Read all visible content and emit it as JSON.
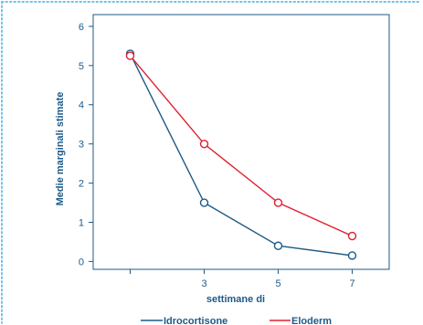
{
  "colors": {
    "frame_dots": "#74c1e8",
    "axis": "#1d5a88",
    "text": "#1d5a88",
    "series_idrocortisone": "#1d5a88",
    "series_eloderm": "#e0202f"
  },
  "chart_data": {
    "type": "line",
    "xlabel": "settimane di",
    "ylabel": "Medie marginali stimate",
    "x": [
      1,
      3,
      5,
      7
    ],
    "x_tick_labels": [
      "",
      "3",
      "5",
      "7"
    ],
    "xlim": [
      0,
      8
    ],
    "ylim": [
      -0.2,
      6.3
    ],
    "y_ticks": [
      0,
      1,
      2,
      3,
      4,
      5,
      6
    ],
    "y_tick_labels": [
      "0",
      "1",
      "2",
      "3",
      "4",
      "5",
      "6"
    ],
    "grid": false,
    "legend_position": "bottom",
    "series": [
      {
        "name": "Idrocortisone",
        "values": [
          5.3,
          1.5,
          0.4,
          0.15
        ]
      },
      {
        "name": "Eloderm",
        "values": [
          5.25,
          3.0,
          1.5,
          0.65
        ]
      }
    ]
  }
}
